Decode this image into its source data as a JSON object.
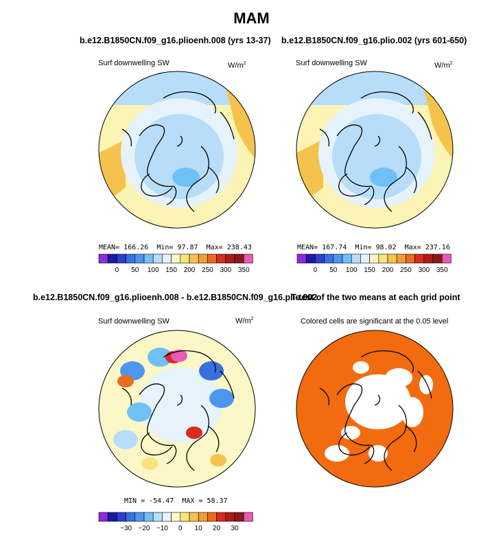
{
  "figure": {
    "title": "MAM"
  },
  "chart_data": [
    {
      "type": "heatmap",
      "projection": "north-polar-stereographic",
      "title": "b.e12.B1850CN.f09_g16.plioenh.008 (yrs 13-37)",
      "variable": "Surf downwelling SW",
      "units_base": "W/m",
      "units_exp": "2",
      "stats": {
        "mean_label": "MEAN=",
        "mean": "166.26",
        "min_label": "Min=",
        "min": "97.87",
        "max_label": "Max=",
        "max": "238.43"
      },
      "colorbar": {
        "colors": [
          "#8b2be2",
          "#1a1aa6",
          "#2c3fd1",
          "#3a6fe0",
          "#4d96f0",
          "#70c0f8",
          "#b8ddf8",
          "#e6f3fb",
          "#fbf7c6",
          "#f9e37a",
          "#f5c34d",
          "#f29d33",
          "#ec6a1f",
          "#d92b1f",
          "#b01a1a",
          "#8a1a1a",
          "#e85ab4"
        ],
        "ticks": [
          "0",
          "50",
          "100",
          "150",
          "200",
          "250",
          "300",
          "350"
        ]
      }
    },
    {
      "type": "heatmap",
      "projection": "north-polar-stereographic",
      "title": "b.e12.B1850CN.f09_g16.plio.002 (yrs 601-650)",
      "variable": "Surf downwelling SW",
      "units_base": "W/m",
      "units_exp": "2",
      "stats": {
        "mean_label": "MEAN=",
        "mean": "167.74",
        "min_label": "Min=",
        "min": "98.02",
        "max_label": "Max=",
        "max": "237.16"
      },
      "colorbar": {
        "colors": [
          "#8b2be2",
          "#1a1aa6",
          "#2c3fd1",
          "#3a6fe0",
          "#4d96f0",
          "#70c0f8",
          "#b8ddf8",
          "#e6f3fb",
          "#fbf7c6",
          "#f9e37a",
          "#f5c34d",
          "#f29d33",
          "#ec6a1f",
          "#d92b1f",
          "#b01a1a",
          "#8a1a1a",
          "#e85ab4"
        ],
        "ticks": [
          "0",
          "50",
          "100",
          "150",
          "200",
          "250",
          "300",
          "350"
        ]
      }
    },
    {
      "type": "heatmap",
      "projection": "north-polar-stereographic",
      "title": "b.e12.B1850CN.f09_g16.plioenh.008 - b.e12.B1850CN.f09_g16.plio.002",
      "variable": "Surf downwelling SW",
      "units_base": "W/m",
      "units_exp": "2",
      "stats": {
        "min_label": "MIN =",
        "min": "-54.47",
        "max_label": "MAX =",
        "max": "58.37"
      },
      "colorbar": {
        "colors": [
          "#8b2be2",
          "#1a1aa6",
          "#2c3fd1",
          "#3a6fe0",
          "#4d96f0",
          "#70c0f8",
          "#b8ddf8",
          "#e6f3fb",
          "#fbf7c6",
          "#f9e37a",
          "#f5c34d",
          "#f29d33",
          "#ec6a1f",
          "#d92b1f",
          "#b01a1a",
          "#8a1a1a",
          "#e85ab4"
        ],
        "ticks": [
          "−30",
          "−20",
          "−10",
          "0",
          "10",
          "20",
          "30"
        ]
      }
    },
    {
      "type": "heatmap",
      "projection": "north-polar-stereographic",
      "title": "T-test of the two means at each grid point",
      "caption": "Colored cells are significant at the 0.05 level",
      "fill_color": "#f26b0f"
    }
  ]
}
